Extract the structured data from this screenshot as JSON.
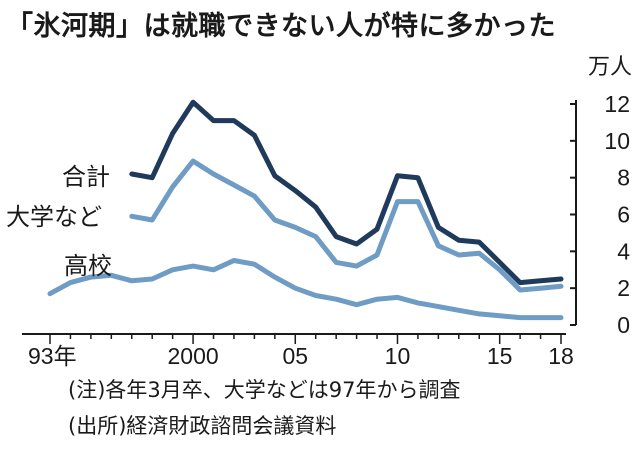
{
  "title": "「氷河期」は就職できない人が特に多かった",
  "notes": [
    "(注)各年3月卒、大学などは97年から調査",
    "(出所)経済財政諮問会議資料"
  ],
  "chart_data": {
    "type": "line",
    "unit": "万人",
    "ylim": [
      0,
      12
    ],
    "yticks": [
      0,
      2,
      4,
      6,
      8,
      10,
      12
    ],
    "xlim": [
      1993,
      2018
    ],
    "xticks": [
      {
        "value": 1993,
        "label": "93年"
      },
      {
        "value": 2000,
        "label": "2000"
      },
      {
        "value": 2005,
        "label": "05"
      },
      {
        "value": 2010,
        "label": "10"
      },
      {
        "value": 2015,
        "label": "15"
      },
      {
        "value": 2018,
        "label": "18"
      }
    ],
    "grid": false,
    "series": [
      {
        "name": "合計",
        "color": "#1f3a5a",
        "x": [
          1997,
          1998,
          1999,
          2000,
          2001,
          2002,
          2003,
          2004,
          2005,
          2006,
          2007,
          2008,
          2009,
          2010,
          2011,
          2012,
          2013,
          2014,
          2015,
          2016,
          2017,
          2018
        ],
        "y": [
          8.2,
          8.0,
          10.4,
          12.1,
          11.1,
          11.1,
          10.3,
          8.1,
          7.3,
          6.4,
          4.8,
          4.4,
          5.2,
          8.1,
          8.0,
          5.3,
          4.6,
          4.5,
          3.4,
          2.3,
          2.4,
          2.5
        ]
      },
      {
        "name": "大学など",
        "color": "#6f9cc4",
        "x": [
          1997,
          1998,
          1999,
          2000,
          2001,
          2002,
          2003,
          2004,
          2005,
          2006,
          2007,
          2008,
          2009,
          2010,
          2011,
          2012,
          2013,
          2014,
          2015,
          2016,
          2017,
          2018
        ],
        "y": [
          5.9,
          5.7,
          7.5,
          8.9,
          8.2,
          7.6,
          7.0,
          5.7,
          5.3,
          4.8,
          3.4,
          3.2,
          3.8,
          6.7,
          6.7,
          4.3,
          3.8,
          3.9,
          3.0,
          1.9,
          2.0,
          2.1
        ]
      },
      {
        "name": "高校",
        "color": "#6f9cc4",
        "x": [
          1993,
          1994,
          1995,
          1996,
          1997,
          1998,
          1999,
          2000,
          2001,
          2002,
          2003,
          2004,
          2005,
          2006,
          2007,
          2008,
          2009,
          2010,
          2011,
          2012,
          2013,
          2014,
          2015,
          2016,
          2017,
          2018
        ],
        "y": [
          1.7,
          2.3,
          2.6,
          2.7,
          2.4,
          2.5,
          3.0,
          3.2,
          3.0,
          3.5,
          3.3,
          2.6,
          2.0,
          1.6,
          1.4,
          1.1,
          1.4,
          1.5,
          1.2,
          1.0,
          0.8,
          0.6,
          0.5,
          0.4,
          0.4,
          0.4
        ]
      }
    ]
  }
}
